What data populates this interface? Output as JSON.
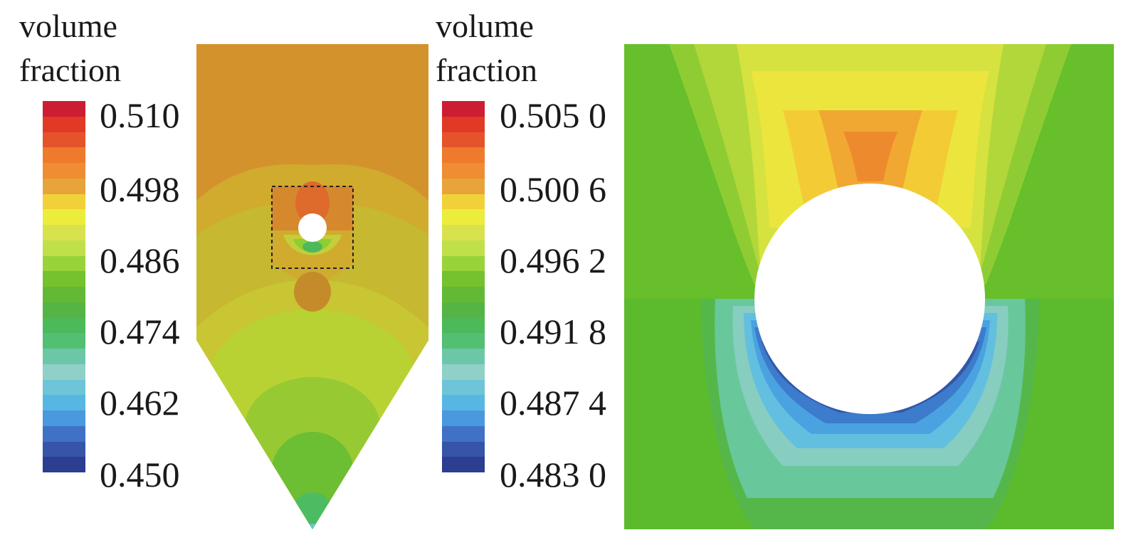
{
  "left_legend": {
    "title_line1": "volume",
    "title_line2": "fraction",
    "ticks": [
      "0.510",
      "0.498",
      "0.486",
      "0.474",
      "0.462",
      "0.450"
    ]
  },
  "right_legend": {
    "title_line1": "volume",
    "title_line2": "fraction",
    "ticks": [
      "0.505 0",
      "0.500 6",
      "0.496 2",
      "0.491 8",
      "0.487 4",
      "0.483 0"
    ]
  },
  "colormap": [
    "#cc1e33",
    "#e03a26",
    "#e4532a",
    "#ed7b2b",
    "#f08c32",
    "#e6a43a",
    "#f2d03a",
    "#ecec3a",
    "#d8e24c",
    "#bfe04a",
    "#99d33a",
    "#75c12e",
    "#64b934",
    "#55b443",
    "#4cba59",
    "#52bf73",
    "#6cc7a8",
    "#8fd0c8",
    "#6ec5d8",
    "#58b6e2",
    "#4a98de",
    "#3f72c6",
    "#3655a8",
    "#2b3e8f"
  ]
}
